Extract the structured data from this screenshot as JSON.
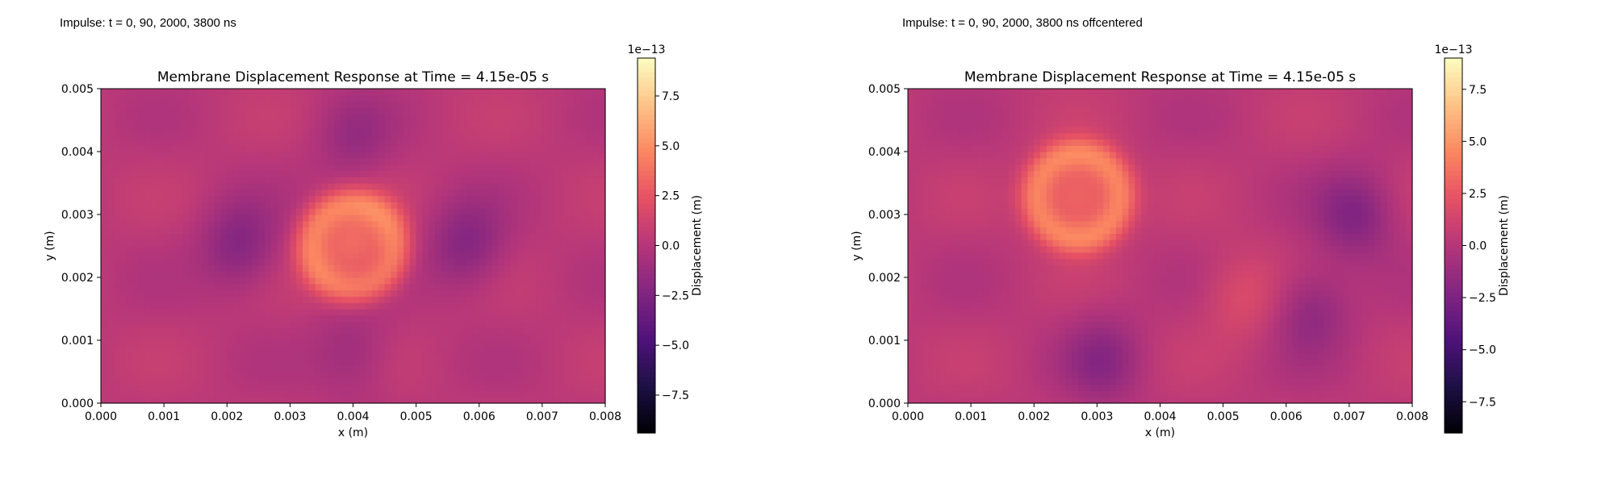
{
  "panels": [
    {
      "impulse_label": "Impulse: t = 0, 90, 2000, 3800 ns",
      "chart_data": {
        "type": "heatmap",
        "title": "Membrane Displacement Response at Time = 4.15e-05 s",
        "xlabel": "x (m)",
        "ylabel": "y (m)",
        "xlim": [
          0,
          0.008
        ],
        "ylim": [
          0,
          0.005
        ],
        "xticks": [
          "0.000",
          "0.001",
          "0.002",
          "0.003",
          "0.004",
          "0.005",
          "0.006",
          "0.007",
          "0.008"
        ],
        "yticks": [
          "0.000",
          "0.001",
          "0.002",
          "0.003",
          "0.004",
          "0.005"
        ],
        "colormap": "magma",
        "colorbar": {
          "label": "Displacement (m)",
          "offset_text": "1e−13",
          "range": [
            -9.4,
            9.4
          ],
          "ticks": [
            "−7.5",
            "−5.0",
            "−2.5",
            "0.0",
            "2.5",
            "5.0",
            "7.5"
          ]
        },
        "features": [
          {
            "kind": "ring",
            "x": 0.004,
            "y": 0.0025,
            "value": 5.5
          },
          {
            "kind": "trough",
            "x": 0.0022,
            "y": 0.0025,
            "value": -2.5
          },
          {
            "kind": "trough",
            "x": 0.0058,
            "y": 0.0025,
            "value": -2.5
          },
          {
            "kind": "trough",
            "x": 0.004,
            "y": 0.0008,
            "value": -1.5
          },
          {
            "kind": "trough",
            "x": 0.004,
            "y": 0.0042,
            "value": -1.5
          }
        ]
      }
    },
    {
      "impulse_label": "Impulse: t = 0, 90, 2000, 3800 ns offcentered",
      "chart_data": {
        "type": "heatmap",
        "title": "Membrane Displacement Response at Time = 4.15e-05 s",
        "xlabel": "x (m)",
        "ylabel": "y (m)",
        "xlim": [
          0,
          0.008
        ],
        "ylim": [
          0,
          0.005
        ],
        "xticks": [
          "0.000",
          "0.001",
          "0.002",
          "0.003",
          "0.004",
          "0.005",
          "0.006",
          "0.007",
          "0.008"
        ],
        "yticks": [
          "0.000",
          "0.001",
          "0.002",
          "0.003",
          "0.004",
          "0.005"
        ],
        "colormap": "magma",
        "colorbar": {
          "label": "Displacement (m)",
          "offset_text": "1e−13",
          "range": [
            -9.0,
            9.0
          ],
          "ticks": [
            "−7.5",
            "−5.0",
            "−2.5",
            "0.0",
            "2.5",
            "5.0",
            "7.5"
          ]
        },
        "features": [
          {
            "kind": "ring",
            "x": 0.0027,
            "y": 0.0033,
            "value": 5.5
          },
          {
            "kind": "trough",
            "x": 0.0071,
            "y": 0.003,
            "value": -2.5
          },
          {
            "kind": "trough",
            "x": 0.0031,
            "y": 0.0007,
            "value": -2.0
          },
          {
            "kind": "trough",
            "x": 0.0064,
            "y": 0.0015,
            "value": -2.0
          },
          {
            "kind": "peak",
            "x": 0.0053,
            "y": 0.0017,
            "value": 1.5
          }
        ]
      }
    }
  ]
}
